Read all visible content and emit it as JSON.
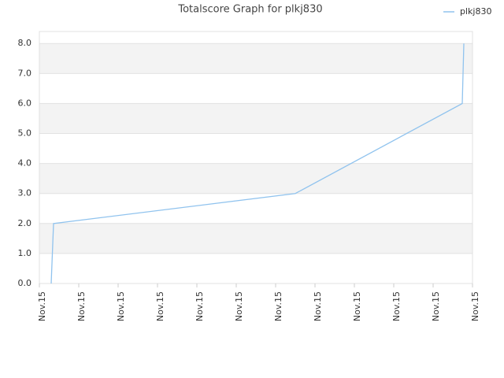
{
  "chart_data": {
    "type": "line",
    "title": "Totalscore Graph for plkj830",
    "x": [
      0.3,
      0.36,
      6.5,
      10.74,
      10.78
    ],
    "series": [
      {
        "name": "plkj830",
        "color": "#90c3ee",
        "values": [
          0,
          2,
          3,
          6,
          8
        ]
      }
    ],
    "xlim": [
      0,
      11
    ],
    "xticks": [
      {
        "value": 0,
        "label": "Nov.15"
      },
      {
        "value": 1,
        "label": "Nov.15"
      },
      {
        "value": 2,
        "label": "Nov.15"
      },
      {
        "value": 3,
        "label": "Nov.15"
      },
      {
        "value": 4,
        "label": "Nov.15"
      },
      {
        "value": 5,
        "label": "Nov.15"
      },
      {
        "value": 6,
        "label": "Nov.15"
      },
      {
        "value": 7,
        "label": "Nov.15"
      },
      {
        "value": 8,
        "label": "Nov.15"
      },
      {
        "value": 9,
        "label": "Nov.15"
      },
      {
        "value": 10,
        "label": "Nov.15"
      },
      {
        "value": 11,
        "label": "Nov.15"
      }
    ],
    "ylim": [
      0,
      8.4
    ],
    "yticks": [
      {
        "value": 0,
        "label": "0.0"
      },
      {
        "value": 1,
        "label": "1.0"
      },
      {
        "value": 2,
        "label": "2.0"
      },
      {
        "value": 3,
        "label": "3.0"
      },
      {
        "value": 4,
        "label": "4.0"
      },
      {
        "value": 5,
        "label": "5.0"
      },
      {
        "value": 6,
        "label": "6.0"
      },
      {
        "value": 7,
        "label": "7.0"
      },
      {
        "value": 8,
        "label": "8.0"
      }
    ],
    "grid": true,
    "legend": "top-right"
  }
}
